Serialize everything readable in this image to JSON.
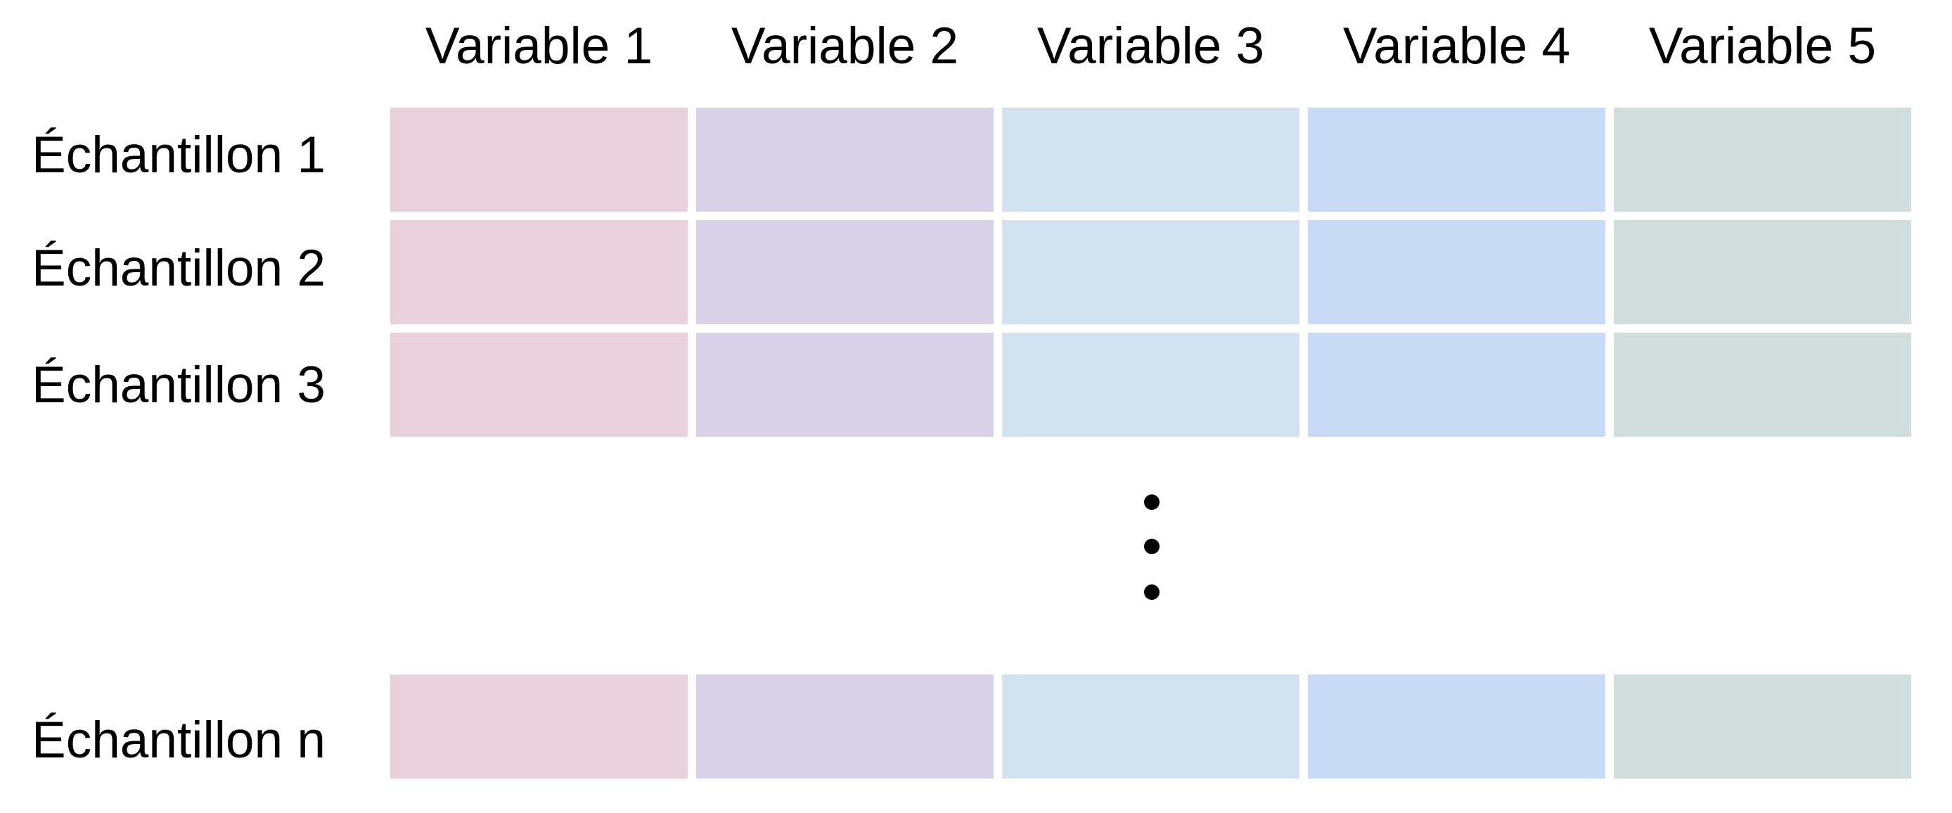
{
  "diagram": {
    "title_semantic": "Data matrix schematic: samples by variables",
    "columns": [
      {
        "label": "Variable 1",
        "color": "#ebd1de"
      },
      {
        "label": "Variable 2",
        "color": "#d8d2e9"
      },
      {
        "label": "Variable 3",
        "color": "#d3e2f0"
      },
      {
        "label": "Variable 4",
        "color": "#c9daf6"
      },
      {
        "label": "Variable 5",
        "color": "#d0dfdd"
      }
    ],
    "rows": [
      {
        "label": "Échantillon 1"
      },
      {
        "label": "Échantillon 2"
      },
      {
        "label": "Échantillon 3"
      },
      {
        "label": "Échantillon n"
      }
    ],
    "ellipsis": {
      "dot_count": 3,
      "dot_color": "#000000"
    }
  },
  "colors": {
    "background": "#ffffff",
    "text": "#000000"
  }
}
